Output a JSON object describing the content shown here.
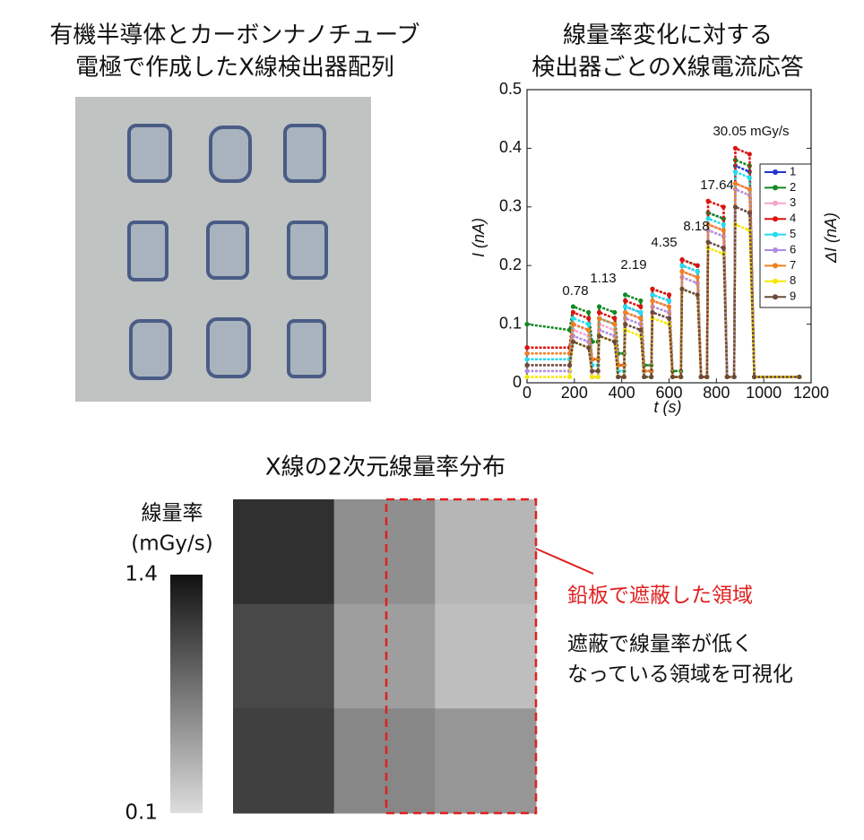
{
  "photo": {
    "title": [
      "有機半導体とカーボンナノチューブ",
      "電極で作成したX線検出器配列"
    ]
  },
  "chart_data": [
    {
      "type": "line",
      "title": [
        "線量率変化に対する",
        "検出器ごとのX線電流応答"
      ],
      "xlabel": "t (s)",
      "ylabel": "I (nA)",
      "y2label": "ΔI (nA)",
      "xlim": [
        0,
        1200
      ],
      "xticks": [
        0,
        200,
        400,
        600,
        800,
        1000,
        1200
      ],
      "ylim": [
        0,
        0.5
      ],
      "yticks": [
        0,
        0.1,
        0.2,
        0.3,
        0.4,
        0.5
      ],
      "annotations": [
        "0.78",
        "1.13",
        "2.19",
        "4.35",
        "8.18",
        "17.64",
        "30.05 mGy/s"
      ],
      "x": [
        0,
        180,
        195,
        260,
        275,
        300,
        305,
        370,
        385,
        410,
        415,
        480,
        495,
        525,
        530,
        600,
        615,
        650,
        655,
        720,
        735,
        760,
        765,
        830,
        845,
        875,
        880,
        940,
        960,
        1150
      ],
      "series": [
        {
          "name": "1",
          "color": "#2233cc",
          "values": [
            0.05,
            0.05,
            0.1,
            0.09,
            0.04,
            0.04,
            0.11,
            0.1,
            0.03,
            0.03,
            0.13,
            0.12,
            0.02,
            0.02,
            0.15,
            0.14,
            0.01,
            0.01,
            0.2,
            0.19,
            0.01,
            0.01,
            0.29,
            0.28,
            0.01,
            0.01,
            0.37,
            0.36,
            0.01,
            0.01
          ]
        },
        {
          "name": "2",
          "color": "#118822",
          "values": [
            0.1,
            0.09,
            0.13,
            0.12,
            0.07,
            0.07,
            0.13,
            0.12,
            0.05,
            0.05,
            0.15,
            0.14,
            0.03,
            0.03,
            0.16,
            0.15,
            0.02,
            0.02,
            0.21,
            0.2,
            0.01,
            0.01,
            0.29,
            0.28,
            0.01,
            0.01,
            0.38,
            0.37,
            0.01,
            0.01
          ]
        },
        {
          "name": "3",
          "color": "#f4a6c8",
          "values": [
            0.03,
            0.03,
            0.09,
            0.08,
            0.02,
            0.02,
            0.1,
            0.09,
            0.01,
            0.01,
            0.12,
            0.11,
            0.01,
            0.01,
            0.14,
            0.13,
            0.01,
            0.01,
            0.19,
            0.18,
            0.01,
            0.01,
            0.27,
            0.26,
            0.01,
            0.01,
            0.34,
            0.33,
            0.01,
            0.01
          ]
        },
        {
          "name": "4",
          "color": "#dd1111",
          "values": [
            0.06,
            0.06,
            0.12,
            0.11,
            0.04,
            0.04,
            0.12,
            0.11,
            0.03,
            0.03,
            0.14,
            0.13,
            0.02,
            0.02,
            0.16,
            0.15,
            0.01,
            0.01,
            0.21,
            0.2,
            0.01,
            0.01,
            0.31,
            0.3,
            0.01,
            0.01,
            0.4,
            0.39,
            0.01,
            0.01
          ]
        },
        {
          "name": "5",
          "color": "#22ddee",
          "values": [
            0.04,
            0.04,
            0.11,
            0.1,
            0.03,
            0.03,
            0.11,
            0.1,
            0.02,
            0.02,
            0.13,
            0.12,
            0.01,
            0.01,
            0.15,
            0.14,
            0.01,
            0.01,
            0.2,
            0.19,
            0.01,
            0.01,
            0.28,
            0.27,
            0.01,
            0.01,
            0.36,
            0.35,
            0.01,
            0.01
          ]
        },
        {
          "name": "6",
          "color": "#b08ce0",
          "values": [
            0.02,
            0.02,
            0.08,
            0.07,
            0.01,
            0.01,
            0.09,
            0.08,
            0.01,
            0.01,
            0.11,
            0.1,
            0.01,
            0.01,
            0.13,
            0.12,
            0.01,
            0.01,
            0.18,
            0.17,
            0.01,
            0.01,
            0.26,
            0.25,
            0.01,
            0.01,
            0.33,
            0.32,
            0.01,
            0.01
          ]
        },
        {
          "name": "7",
          "color": "#f08020",
          "values": [
            0.05,
            0.05,
            0.1,
            0.09,
            0.04,
            0.04,
            0.11,
            0.1,
            0.03,
            0.03,
            0.12,
            0.11,
            0.02,
            0.02,
            0.14,
            0.13,
            0.01,
            0.01,
            0.19,
            0.18,
            0.01,
            0.01,
            0.27,
            0.26,
            0.01,
            0.01,
            0.34,
            0.33,
            0.01,
            0.01
          ]
        },
        {
          "name": "8",
          "color": "#f5e800",
          "values": [
            0.01,
            0.01,
            0.07,
            0.06,
            0.01,
            0.01,
            0.08,
            0.07,
            0.01,
            0.01,
            0.09,
            0.08,
            0.01,
            0.01,
            0.11,
            0.1,
            0.01,
            0.01,
            0.16,
            0.15,
            0.01,
            0.01,
            0.23,
            0.22,
            0.01,
            0.01,
            0.27,
            0.26,
            0.01,
            0.01
          ]
        },
        {
          "name": "9",
          "color": "#6b4a3a",
          "values": [
            0.03,
            0.03,
            0.07,
            0.06,
            0.02,
            0.02,
            0.08,
            0.07,
            0.01,
            0.01,
            0.1,
            0.09,
            0.01,
            0.01,
            0.12,
            0.11,
            0.01,
            0.01,
            0.16,
            0.15,
            0.01,
            0.01,
            0.24,
            0.23,
            0.01,
            0.01,
            0.3,
            0.29,
            0.01,
            0.01
          ]
        }
      ]
    },
    {
      "type": "heatmap",
      "title": "X線の2次元線量率分布",
      "z": [
        [
          1.2,
          0.6,
          0.35
        ],
        [
          1.05,
          0.5,
          0.3
        ],
        [
          1.1,
          0.65,
          0.55
        ]
      ],
      "zlim": [
        0.1,
        1.4
      ],
      "colorscale": [
        "#dddddd",
        "#111111"
      ],
      "colorbar": {
        "title": [
          "線量率",
          "(mGy/s)"
        ],
        "ticks": [
          0.1,
          1.4
        ]
      },
      "annotations": {
        "highlight": "鉛板で遮蔽した領域",
        "note": [
          "遮蔽で線量率が低く",
          "なっている領域を可視化"
        ]
      }
    }
  ]
}
